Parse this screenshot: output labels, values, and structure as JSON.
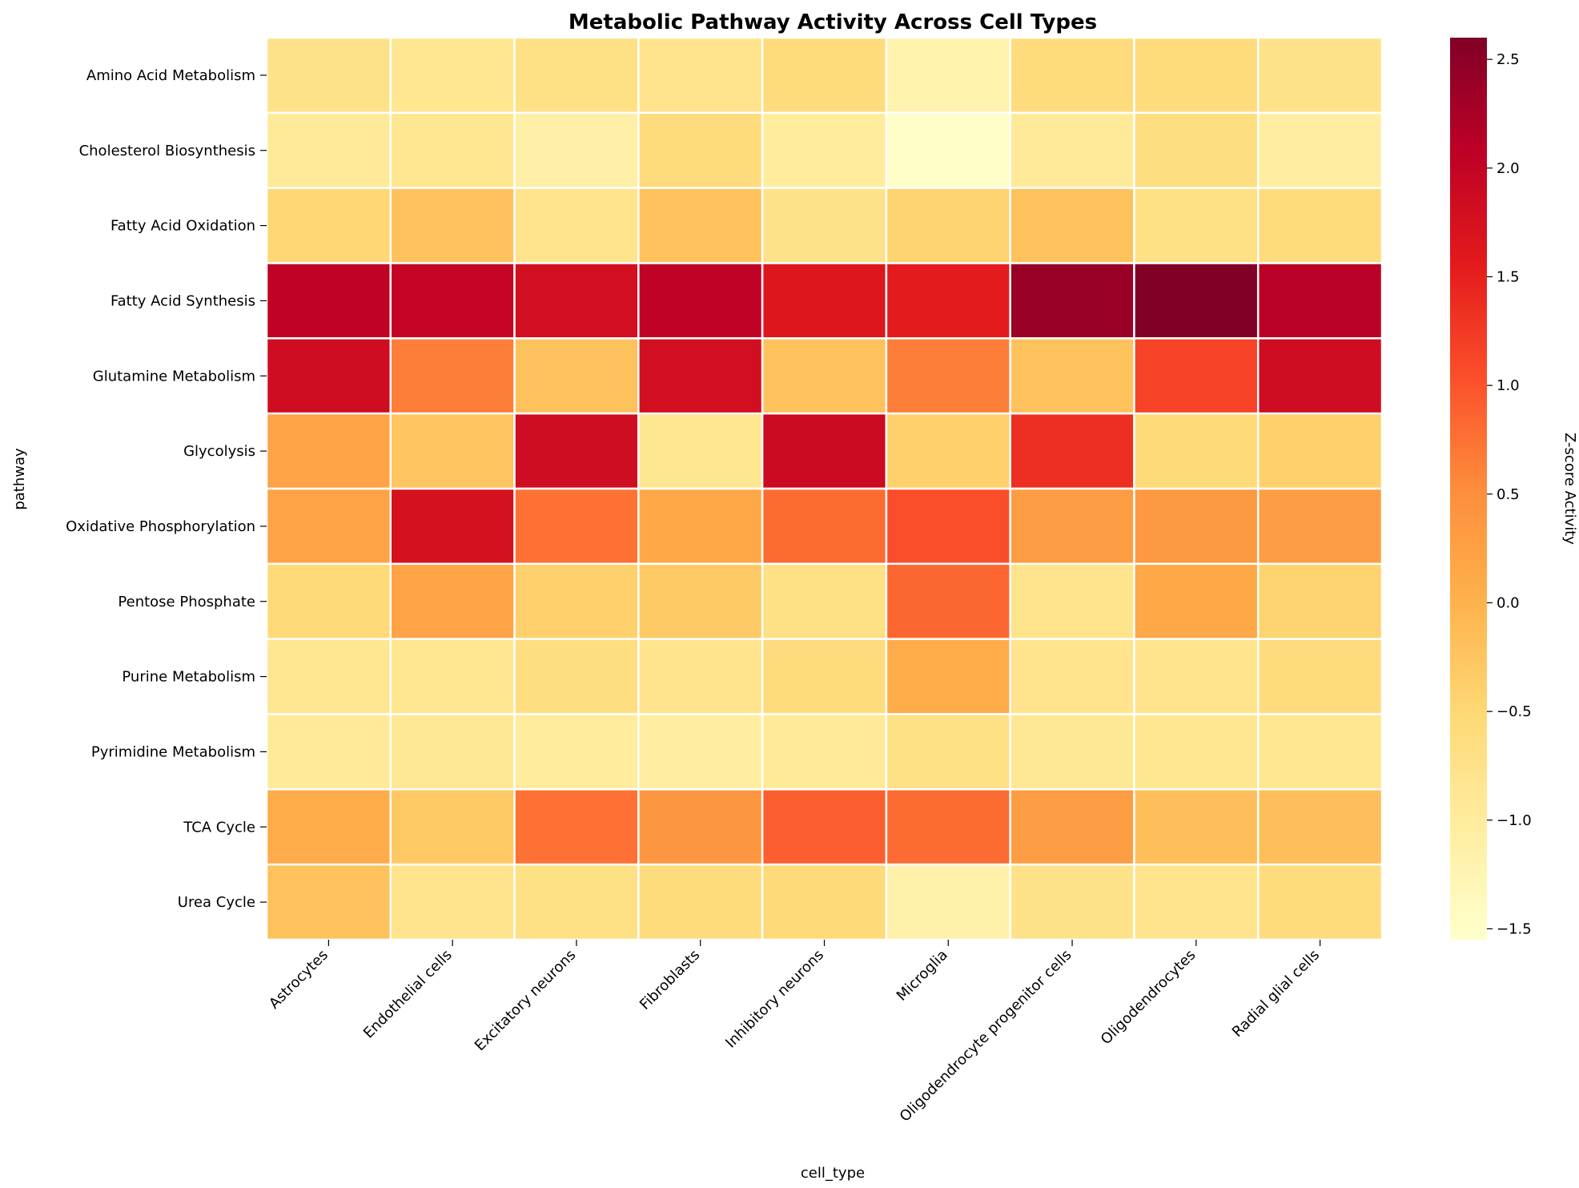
{
  "chart_data": {
    "type": "heatmap",
    "title": "Metabolic Pathway Activity Across Cell Types",
    "xlabel": "cell_type",
    "ylabel": "pathway",
    "colorbar_label": "Z-score Activity",
    "colormap": "YlOrRd",
    "vmin": -1.55,
    "vmax": 2.6,
    "colorbar_ticks": [
      2.5,
      2.0,
      1.5,
      1.0,
      0.5,
      0.0,
      -0.5,
      -1.0,
      -1.5
    ],
    "colorbar_tick_labels": [
      "2.5",
      "2.0",
      "1.5",
      "1.0",
      "0.5",
      "0.0",
      "−0.5",
      "−1.0",
      "−1.5"
    ],
    "x_categories": [
      "Astrocytes",
      "Endothelial cells",
      "Excitatory neurons",
      "Fibroblasts",
      "Inhibitory neurons",
      "Microglia",
      "Oligodendrocyte progenitor cells",
      "Oligodendrocytes",
      "Radial glial cells"
    ],
    "y_categories": [
      "Amino Acid Metabolism",
      "Cholesterol Biosynthesis",
      "Fatty Acid Oxidation",
      "Fatty Acid Synthesis",
      "Glutamine Metabolism",
      "Glycolysis",
      "Oxidative Phosphorylation",
      "Pentose Phosphate",
      "Purine Metabolism",
      "Pyrimidine Metabolism",
      "TCA Cycle",
      "Urea Cycle"
    ],
    "values": [
      [
        -0.75,
        -0.85,
        -0.7,
        -0.8,
        -0.6,
        -1.2,
        -0.6,
        -0.6,
        -0.75
      ],
      [
        -0.95,
        -0.85,
        -1.1,
        -0.6,
        -1.0,
        -1.5,
        -0.95,
        -0.65,
        -1.05
      ],
      [
        -0.5,
        -0.2,
        -0.8,
        -0.2,
        -0.75,
        -0.45,
        -0.2,
        -0.7,
        -0.6
      ],
      [
        2.05,
        2.0,
        1.8,
        2.05,
        1.65,
        1.55,
        2.4,
        2.6,
        2.1
      ],
      [
        1.85,
        0.65,
        -0.2,
        1.8,
        -0.2,
        0.65,
        -0.2,
        1.15,
        1.85
      ],
      [
        0.2,
        -0.25,
        1.85,
        -0.85,
        1.9,
        -0.4,
        1.35,
        -0.55,
        -0.4
      ],
      [
        0.2,
        1.75,
        0.75,
        0.15,
        0.8,
        1.05,
        0.3,
        0.35,
        0.3
      ],
      [
        -0.55,
        0.2,
        -0.4,
        -0.3,
        -0.7,
        0.85,
        -0.8,
        0.15,
        -0.45
      ],
      [
        -0.85,
        -0.85,
        -0.65,
        -0.8,
        -0.6,
        0.1,
        -0.8,
        -0.8,
        -0.6
      ],
      [
        -0.95,
        -0.9,
        -1.0,
        -1.05,
        -0.95,
        -0.7,
        -0.9,
        -0.85,
        -0.85
      ],
      [
        0.1,
        -0.3,
        0.75,
        0.4,
        0.9,
        0.8,
        0.3,
        -0.15,
        -0.15
      ],
      [
        -0.2,
        -0.8,
        -0.7,
        -0.6,
        -0.55,
        -1.15,
        -0.75,
        -0.8,
        -0.6
      ]
    ]
  }
}
